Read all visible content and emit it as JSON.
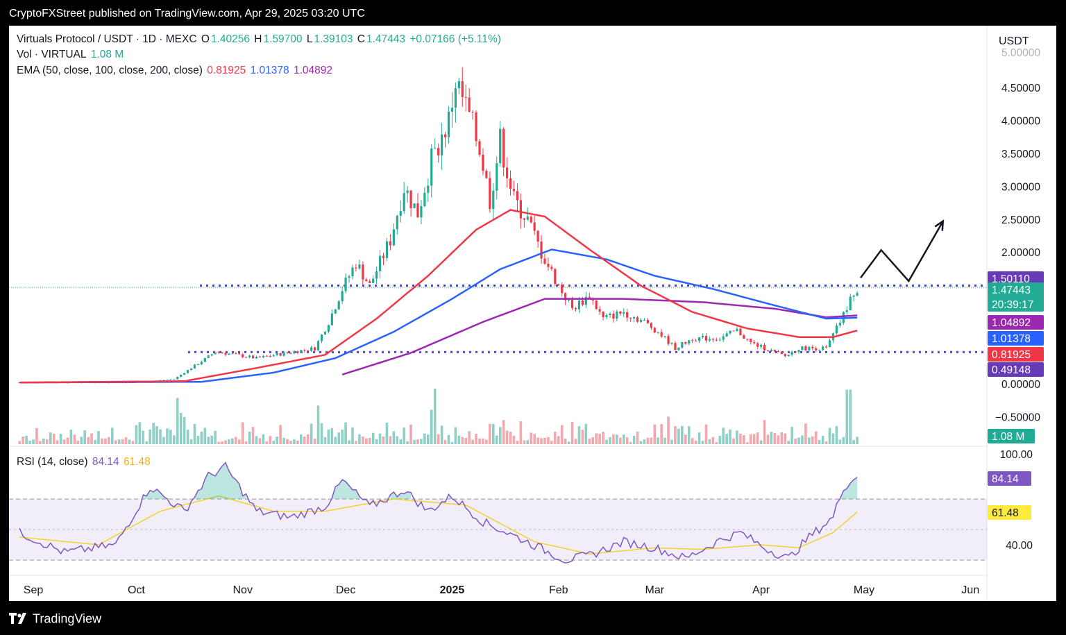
{
  "header": {
    "publisher_text": "CryptoFXStreet published on TradingView.com, Apr 29, 2025 03:20 UTC"
  },
  "legend": {
    "symbol": "Virtuals Protocol / USDT · 1D · MEXC",
    "open_label": "O",
    "open": "1.40256",
    "high_label": "H",
    "high": "1.59700",
    "low_label": "L",
    "low": "1.39103",
    "close_label": "C",
    "close": "1.47443",
    "change": "+0.07166 (+5.11%)",
    "vol_label": "Vol · VIRTUAL",
    "vol_value": "1.08 M",
    "ema_label": "EMA (50, close, 100, close, 200, close)",
    "ema50": "0.81925",
    "ema100": "1.01378",
    "ema200": "1.04892",
    "rsi_label": "RSI (14, close)",
    "rsi_value": "84.14",
    "rsi_ma": "61.48"
  },
  "price_axis": {
    "currency": "USDT",
    "ticks": [
      "4.50000",
      "4.00000",
      "3.50000",
      "3.00000",
      "2.50000",
      "2.00000",
      "0.00000",
      "−0.50000"
    ]
  },
  "price_badges": [
    {
      "label": "1.50110",
      "color": "#673ab7"
    },
    {
      "label": "1.47443",
      "sub": "20:39:17",
      "color": "#22ab94"
    },
    {
      "label": "1.04892",
      "color": "#9c27b0"
    },
    {
      "label": "1.01378",
      "color": "#2962ff"
    },
    {
      "label": "0.81925",
      "color": "#f23645"
    },
    {
      "label": "0.49148",
      "color": "#673ab7"
    }
  ],
  "volume_badge": "1.08 M",
  "rsi_axis": {
    "ticks": [
      "100.00",
      "40.00"
    ],
    "badges": [
      {
        "label": "84.14",
        "color": "#7e57c2",
        "text_color": "#ffffff"
      },
      {
        "label": "61.48",
        "color": "#ffeb3b",
        "text_color": "#131722"
      }
    ]
  },
  "time_axis": {
    "labels": [
      "Sep",
      "Oct",
      "Nov",
      "Dec",
      "2025",
      "Feb",
      "Mar",
      "Apr",
      "May",
      "Jun"
    ]
  },
  "footer": {
    "brand": "TradingView"
  },
  "colors": {
    "up": "#22ab94",
    "down": "#f23645",
    "vol_up": "#8fd0c6",
    "vol_down": "#f2a8ae",
    "ema50": "#f23645",
    "ema100": "#2962ff",
    "ema200": "#9c27b0",
    "rsi": "#7e57c2",
    "rsi_ma": "#f2d22e",
    "level": "#5b3fd1"
  },
  "chart_data": {
    "type": "candlestick",
    "symbol": "Virtuals Protocol / USDT",
    "interval": "1D",
    "ylim": [
      -0.65,
      5.15
    ],
    "horizontal_levels": [
      1.5011,
      0.49148
    ],
    "price_anchors": [
      {
        "x": "2024-08-28",
        "y": 0.03
      },
      {
        "x": "2024-09-30",
        "y": 0.03
      },
      {
        "x": "2024-10-12",
        "y": 0.08
      },
      {
        "x": "2024-10-22",
        "y": 0.42
      },
      {
        "x": "2024-10-24",
        "y": 0.5
      },
      {
        "x": "2024-11-05",
        "y": 0.4
      },
      {
        "x": "2024-11-22",
        "y": 0.55
      },
      {
        "x": "2024-11-26",
        "y": 0.95
      },
      {
        "x": "2024-11-30",
        "y": 1.45
      },
      {
        "x": "2024-12-04",
        "y": 1.85
      },
      {
        "x": "2024-12-08",
        "y": 1.5
      },
      {
        "x": "2024-12-14",
        "y": 2.2
      },
      {
        "x": "2024-12-18",
        "y": 3.0
      },
      {
        "x": "2024-12-22",
        "y": 2.6
      },
      {
        "x": "2024-12-26",
        "y": 3.4
      },
      {
        "x": "2024-12-31",
        "y": 4.0
      },
      {
        "x": "2025-01-02",
        "y": 4.6
      },
      {
        "x": "2025-01-05",
        "y": 4.2
      },
      {
        "x": "2025-01-09",
        "y": 3.6
      },
      {
        "x": "2025-01-12",
        "y": 2.8
      },
      {
        "x": "2025-01-15",
        "y": 3.7
      },
      {
        "x": "2025-01-19",
        "y": 2.8
      },
      {
        "x": "2025-01-23",
        "y": 2.5
      },
      {
        "x": "2025-01-27",
        "y": 2.0
      },
      {
        "x": "2025-02-01",
        "y": 1.5
      },
      {
        "x": "2025-02-05",
        "y": 1.15
      },
      {
        "x": "2025-02-10",
        "y": 1.35
      },
      {
        "x": "2025-02-14",
        "y": 1.0
      },
      {
        "x": "2025-02-20",
        "y": 1.1
      },
      {
        "x": "2025-02-26",
        "y": 0.95
      },
      {
        "x": "2025-03-02",
        "y": 0.8
      },
      {
        "x": "2025-03-07",
        "y": 0.55
      },
      {
        "x": "2025-03-12",
        "y": 0.7
      },
      {
        "x": "2025-03-20",
        "y": 0.7
      },
      {
        "x": "2025-03-25",
        "y": 0.82
      },
      {
        "x": "2025-03-29",
        "y": 0.63
      },
      {
        "x": "2025-04-02",
        "y": 0.55
      },
      {
        "x": "2025-04-08",
        "y": 0.43
      },
      {
        "x": "2025-04-12",
        "y": 0.55
      },
      {
        "x": "2025-04-20",
        "y": 0.55
      },
      {
        "x": "2025-04-22",
        "y": 0.75
      },
      {
        "x": "2025-04-25",
        "y": 1.05
      },
      {
        "x": "2025-04-27",
        "y": 1.3
      },
      {
        "x": "2025-04-29",
        "y": 1.47443
      }
    ],
    "ema50_anchors": [
      {
        "x": "2024-08-28",
        "y": 0.03
      },
      {
        "x": "2024-10-15",
        "y": 0.05
      },
      {
        "x": "2024-11-05",
        "y": 0.25
      },
      {
        "x": "2024-11-25",
        "y": 0.45
      },
      {
        "x": "2024-12-10",
        "y": 1.0
      },
      {
        "x": "2024-12-25",
        "y": 1.65
      },
      {
        "x": "2025-01-08",
        "y": 2.35
      },
      {
        "x": "2025-01-18",
        "y": 2.65
      },
      {
        "x": "2025-01-28",
        "y": 2.55
      },
      {
        "x": "2025-02-10",
        "y": 2.05
      },
      {
        "x": "2025-02-25",
        "y": 1.5
      },
      {
        "x": "2025-03-12",
        "y": 1.1
      },
      {
        "x": "2025-03-28",
        "y": 0.85
      },
      {
        "x": "2025-04-12",
        "y": 0.72
      },
      {
        "x": "2025-04-22",
        "y": 0.72
      },
      {
        "x": "2025-04-29",
        "y": 0.81925
      }
    ],
    "ema100_anchors": [
      {
        "x": "2024-08-28",
        "y": 0.03
      },
      {
        "x": "2024-10-20",
        "y": 0.04
      },
      {
        "x": "2024-11-10",
        "y": 0.18
      },
      {
        "x": "2024-11-28",
        "y": 0.4
      },
      {
        "x": "2024-12-15",
        "y": 0.8
      },
      {
        "x": "2025-01-01",
        "y": 1.3
      },
      {
        "x": "2025-01-15",
        "y": 1.75
      },
      {
        "x": "2025-01-30",
        "y": 2.05
      },
      {
        "x": "2025-02-15",
        "y": 1.9
      },
      {
        "x": "2025-03-01",
        "y": 1.65
      },
      {
        "x": "2025-03-18",
        "y": 1.45
      },
      {
        "x": "2025-04-05",
        "y": 1.2
      },
      {
        "x": "2025-04-20",
        "y": 1.0
      },
      {
        "x": "2025-04-29",
        "y": 1.01378
      }
    ],
    "ema200_anchors": [
      {
        "x": "2024-11-30",
        "y": 0.15
      },
      {
        "x": "2024-12-20",
        "y": 0.48
      },
      {
        "x": "2025-01-10",
        "y": 0.95
      },
      {
        "x": "2025-01-28",
        "y": 1.3
      },
      {
        "x": "2025-02-20",
        "y": 1.3
      },
      {
        "x": "2025-03-15",
        "y": 1.25
      },
      {
        "x": "2025-04-05",
        "y": 1.15
      },
      {
        "x": "2025-04-20",
        "y": 1.02
      },
      {
        "x": "2025-04-29",
        "y": 1.04892
      }
    ],
    "volume_spikes": [
      {
        "x": "2024-12-27",
        "v": 1.0
      },
      {
        "x": "2024-12-26",
        "v": 0.62
      },
      {
        "x": "2025-04-26",
        "v": 0.98
      },
      {
        "x": "2025-04-27",
        "v": 0.98
      }
    ],
    "rsi": {
      "ylim": [
        20,
        100
      ],
      "upper": 70,
      "middle": 50,
      "lower": 30,
      "anchors": [
        {
          "x": "2024-08-28",
          "y": 48
        },
        {
          "x": "2024-09-10",
          "y": 35
        },
        {
          "x": "2024-09-25",
          "y": 40
        },
        {
          "x": "2024-10-05",
          "y": 78
        },
        {
          "x": "2024-10-15",
          "y": 62
        },
        {
          "x": "2024-10-22",
          "y": 85
        },
        {
          "x": "2024-10-27",
          "y": 91
        },
        {
          "x": "2024-11-05",
          "y": 62
        },
        {
          "x": "2024-11-15",
          "y": 58
        },
        {
          "x": "2024-11-25",
          "y": 65
        },
        {
          "x": "2024-11-30",
          "y": 82
        },
        {
          "x": "2024-12-08",
          "y": 65
        },
        {
          "x": "2024-12-18",
          "y": 76
        },
        {
          "x": "2024-12-25",
          "y": 62
        },
        {
          "x": "2025-01-01",
          "y": 72
        },
        {
          "x": "2025-01-10",
          "y": 55
        },
        {
          "x": "2025-01-20",
          "y": 45
        },
        {
          "x": "2025-02-03",
          "y": 30
        },
        {
          "x": "2025-02-10",
          "y": 33
        },
        {
          "x": "2025-02-20",
          "y": 42
        },
        {
          "x": "2025-03-01",
          "y": 38
        },
        {
          "x": "2025-03-10",
          "y": 31
        },
        {
          "x": "2025-03-20",
          "y": 43
        },
        {
          "x": "2025-03-26",
          "y": 48
        },
        {
          "x": "2025-04-02",
          "y": 38
        },
        {
          "x": "2025-04-09",
          "y": 31
        },
        {
          "x": "2025-04-15",
          "y": 45
        },
        {
          "x": "2025-04-22",
          "y": 58
        },
        {
          "x": "2025-04-25",
          "y": 78
        },
        {
          "x": "2025-04-29",
          "y": 84.14
        }
      ],
      "ma_anchors": [
        {
          "x": "2024-08-28",
          "y": 45
        },
        {
          "x": "2024-09-20",
          "y": 40
        },
        {
          "x": "2024-10-08",
          "y": 62
        },
        {
          "x": "2024-10-25",
          "y": 72
        },
        {
          "x": "2024-11-10",
          "y": 62
        },
        {
          "x": "2024-11-25",
          "y": 62
        },
        {
          "x": "2024-12-15",
          "y": 70
        },
        {
          "x": "2025-01-05",
          "y": 66
        },
        {
          "x": "2025-01-25",
          "y": 42
        },
        {
          "x": "2025-02-10",
          "y": 34
        },
        {
          "x": "2025-03-01",
          "y": 38
        },
        {
          "x": "2025-03-15",
          "y": 37
        },
        {
          "x": "2025-04-01",
          "y": 40
        },
        {
          "x": "2025-04-12",
          "y": 38
        },
        {
          "x": "2025-04-22",
          "y": 48
        },
        {
          "x": "2025-04-29",
          "y": 61.48
        }
      ]
    },
    "forecast_path": [
      {
        "x": "2025-04-30",
        "y": 1.62
      },
      {
        "x": "2025-05-06",
        "y": 2.04
      },
      {
        "x": "2025-05-14",
        "y": 1.57
      },
      {
        "x": "2025-05-24",
        "y": 2.48
      }
    ]
  }
}
